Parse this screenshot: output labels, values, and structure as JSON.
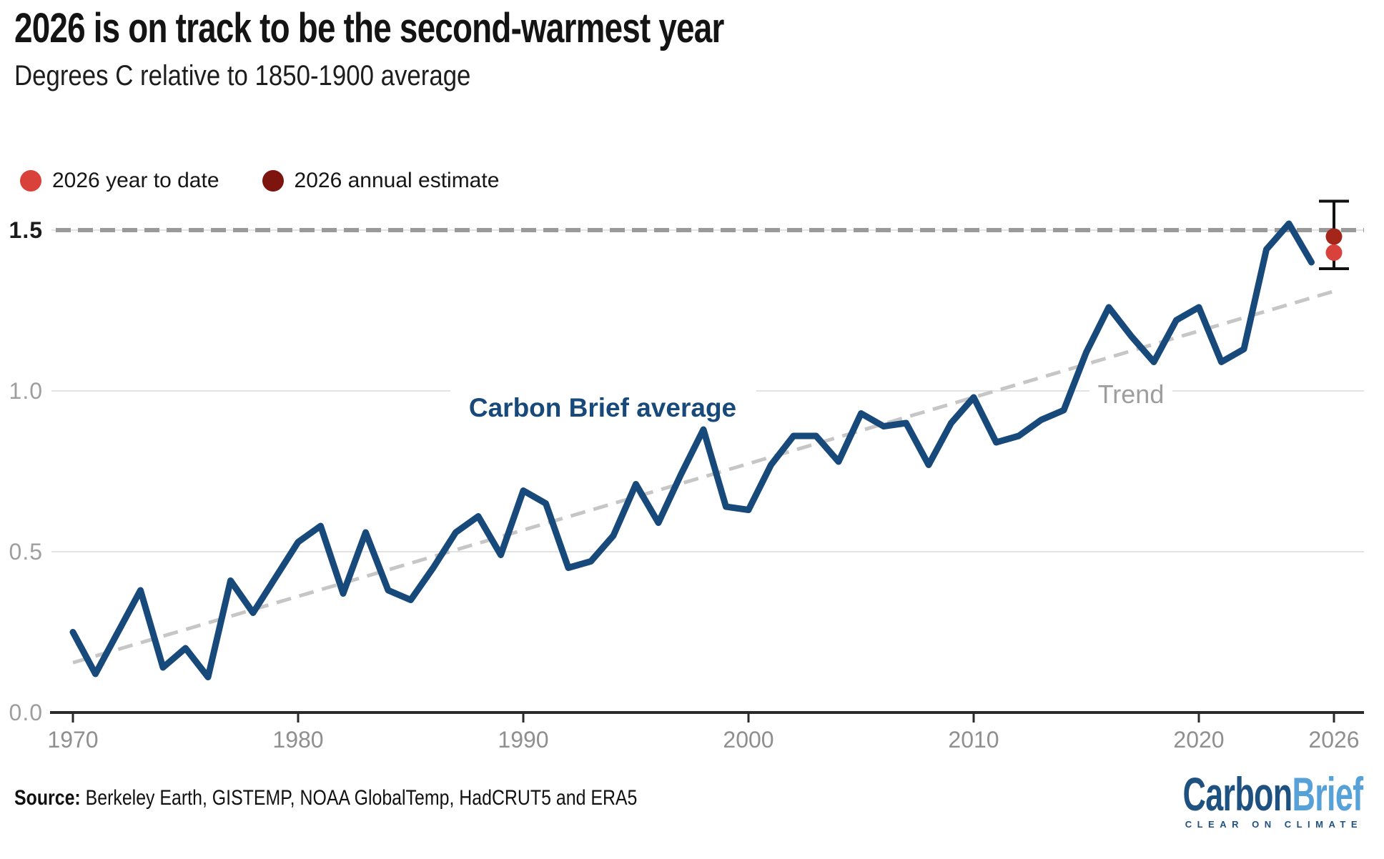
{
  "header": {
    "title": "2026 is on track to be the second-warmest year",
    "subtitle": "Degrees C relative to 1850-1900 average"
  },
  "legend": [
    {
      "label": "2026 year to date",
      "color": "#d9423a"
    },
    {
      "label": "2026 annual estimate",
      "color": "#7d140e"
    }
  ],
  "chart_data": {
    "type": "line",
    "title": "2026 is on track to be the second-warmest year",
    "ylabel": "Degrees C relative to 1850-1900 average",
    "xlim": [
      1969.5,
      2027
    ],
    "ylim": [
      0,
      1.65
    ],
    "grid": "horizontal",
    "legend_position": "top-left",
    "xticks": [
      1970,
      1980,
      1990,
      2000,
      2010,
      2020,
      2026
    ],
    "yticks": [
      {
        "value": 0.0,
        "label": "0.0"
      },
      {
        "value": 0.5,
        "label": "0.5"
      },
      {
        "value": 1.0,
        "label": "1.0"
      },
      {
        "value": 1.5,
        "label": "1.5"
      }
    ],
    "threshold_line": {
      "value": 1.5,
      "style": "dashed",
      "color": "#9a9a9a"
    },
    "trend": {
      "label": "Trend",
      "style": "dashed",
      "color": "#c6c6c6",
      "points": [
        [
          1970,
          0.155
        ],
        [
          2026,
          1.31
        ]
      ]
    },
    "series": [
      {
        "name": "Carbon Brief average",
        "color": "#17497a",
        "year_start": 1970,
        "values": [
          0.25,
          0.12,
          0.25,
          0.38,
          0.14,
          0.2,
          0.11,
          0.41,
          0.31,
          0.42,
          0.53,
          0.58,
          0.37,
          0.56,
          0.38,
          0.35,
          0.45,
          0.56,
          0.61,
          0.49,
          0.69,
          0.65,
          0.45,
          0.47,
          0.55,
          0.71,
          0.59,
          0.74,
          0.88,
          0.64,
          0.63,
          0.77,
          0.86,
          0.86,
          0.78,
          0.93,
          0.89,
          0.9,
          0.77,
          0.9,
          0.98,
          0.84,
          0.86,
          0.91,
          0.94,
          1.12,
          1.26,
          1.17,
          1.09,
          1.22,
          1.26,
          1.09,
          1.13,
          1.44,
          1.52,
          1.4
        ]
      }
    ],
    "estimate_2026": {
      "year": 2026,
      "ytd": {
        "label": "2026 year to date",
        "value": 1.43,
        "color": "#d9423a"
      },
      "annual": {
        "label": "2026 annual estimate",
        "value": 1.48,
        "color": "#a4261b"
      },
      "error_range": [
        1.38,
        1.59
      ],
      "error_bar_color": "#111111"
    }
  },
  "footer": {
    "source_label": "Source:",
    "source_text": " Berkeley Earth, GISTEMP, NOAA GlobalTemp, HadCRUT5 and ERA5"
  },
  "logo": {
    "part1": "Carbon",
    "part2": "Brief",
    "tagline": "CLEAR ON CLIMATE",
    "color1": "#1e5180",
    "color2": "#55a1d8"
  }
}
